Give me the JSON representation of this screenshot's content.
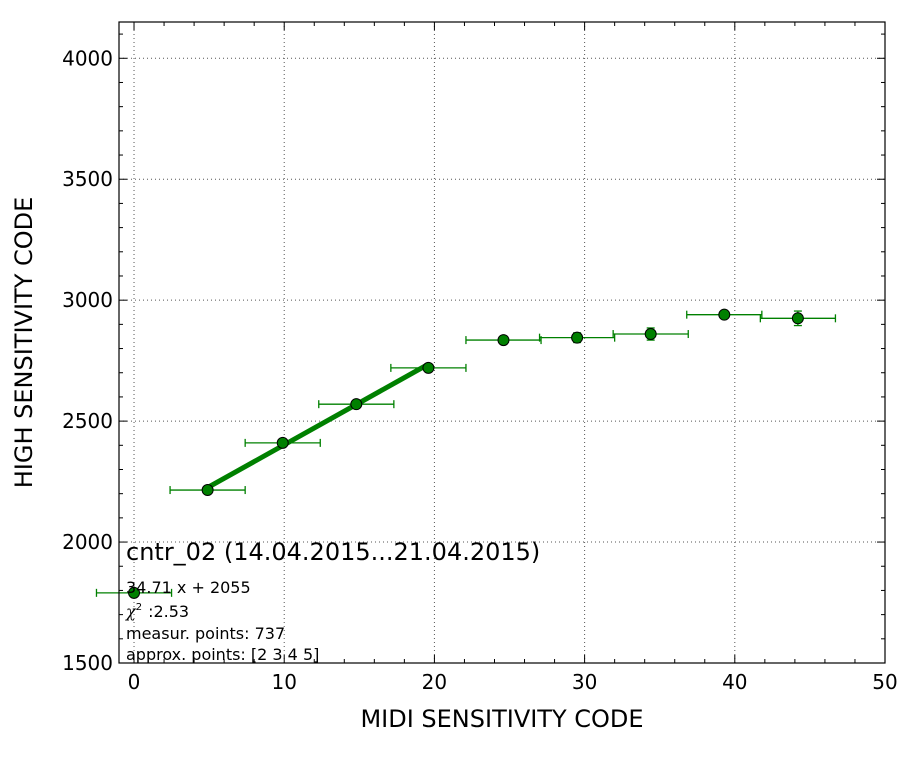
{
  "chart_data": {
    "type": "scatter",
    "xlabel": "MIDI SENSITIVITY CODE",
    "ylabel": "HIGH SENSITIVITY CODE",
    "xlim": [
      -1,
      50
    ],
    "ylim": [
      1500,
      4150
    ],
    "x_ticks": [
      0,
      10,
      20,
      30,
      40,
      50
    ],
    "y_ticks": [
      1500,
      2000,
      2500,
      3000,
      3500,
      4000
    ],
    "grid": true,
    "colors": {
      "series": "#008000",
      "marker_edge": "#000000",
      "grid": "#555555"
    },
    "series": [
      {
        "x": [
          0,
          4.9,
          9.9,
          14.8,
          19.6,
          24.6,
          29.5,
          34.4,
          39.3,
          44.2
        ],
        "y": [
          1790,
          2215,
          2410,
          2570,
          2720,
          2835,
          2845,
          2860,
          2940,
          2925
        ],
        "x_err": [
          2.5,
          2.5,
          2.5,
          2.5,
          2.5,
          2.5,
          2.5,
          2.5,
          2.5,
          2.5
        ],
        "y_err": [
          8,
          10,
          12,
          10,
          15,
          15,
          20,
          25,
          15,
          30
        ]
      }
    ],
    "fit": {
      "slope": 34.71,
      "intercept": 2055,
      "x_range": [
        4.9,
        19.6
      ]
    },
    "annotations": {
      "title": "cntr_02 (14.04.2015...21.04.2015)",
      "fit_equation": "34.71 x + 2055",
      "chi2_symbol": "χ",
      "chi2_exponent": "2",
      "chi2_value": ":2.53",
      "measur_points": "measur. points: 737",
      "approx_points": "approx. points: [2 3 4 5]"
    }
  }
}
